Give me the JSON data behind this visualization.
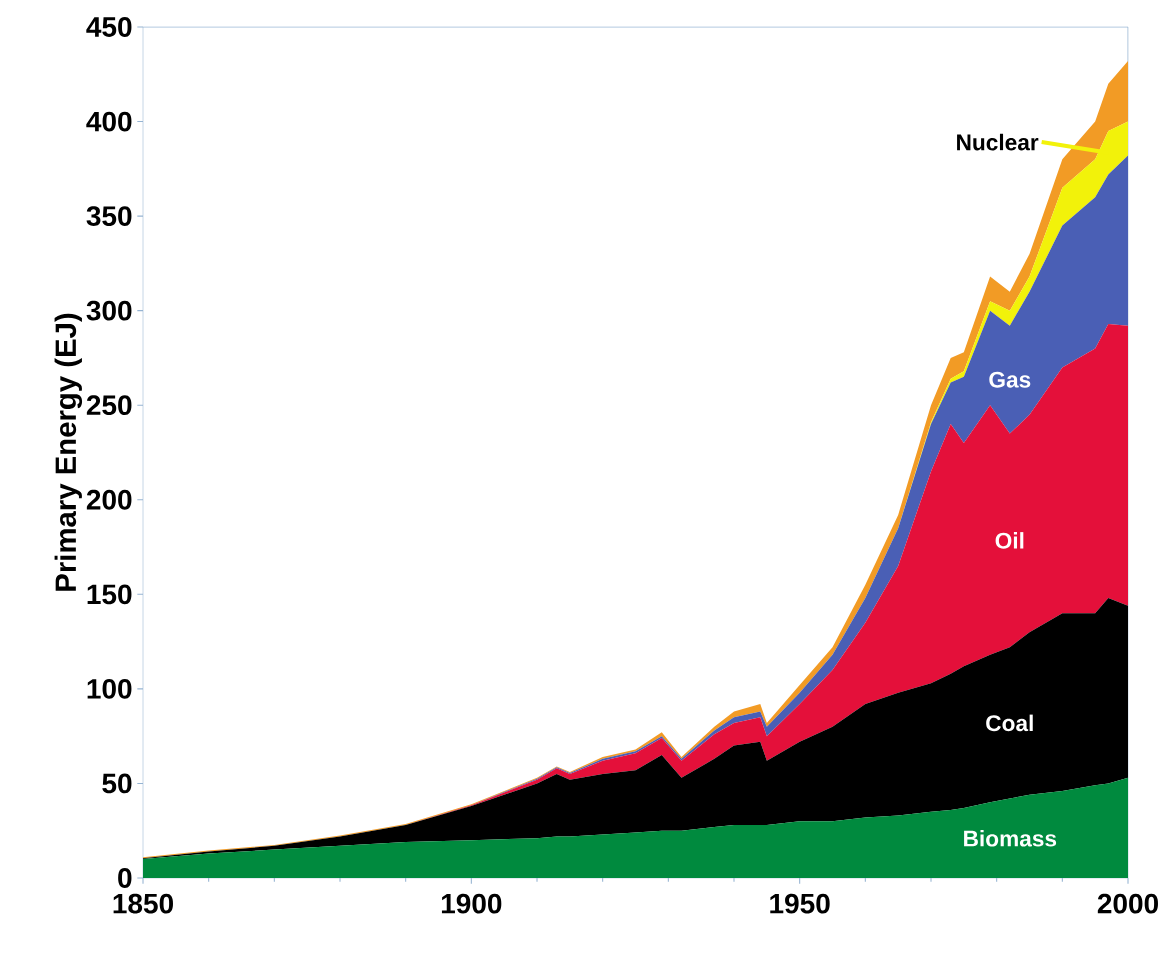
{
  "chart_data": {
    "type": "area",
    "stacked": true,
    "ylabel": "Primary Energy  (EJ)",
    "x": [
      1850,
      1860,
      1870,
      1880,
      1890,
      1900,
      1910,
      1913,
      1915,
      1920,
      1925,
      1929,
      1932,
      1937,
      1940,
      1944,
      1945,
      1950,
      1955,
      1960,
      1965,
      1970,
      1973,
      1975,
      1979,
      1982,
      1985,
      1990,
      1995,
      1997,
      2000
    ],
    "series": [
      {
        "name": "Biomass",
        "color": "#008a3e",
        "values": [
          10,
          13,
          15,
          17,
          19,
          20,
          21,
          22,
          22,
          23,
          24,
          25,
          25,
          27,
          28,
          28,
          28,
          30,
          30,
          32,
          33,
          35,
          36,
          37,
          40,
          42,
          44,
          46,
          49,
          50,
          53
        ]
      },
      {
        "name": "Coal",
        "color": "#000000",
        "values": [
          0.5,
          1,
          2,
          5,
          9,
          18,
          29,
          33,
          30,
          32,
          33,
          40,
          28,
          36,
          42,
          44,
          34,
          42,
          50,
          60,
          65,
          68,
          72,
          75,
          78,
          80,
          86,
          94,
          91,
          98,
          91
        ]
      },
      {
        "name": "Oil",
        "color": "#e4103a",
        "values": [
          0,
          0,
          0,
          0,
          0,
          0.5,
          2,
          3,
          3,
          7,
          9,
          9,
          9,
          13,
          12,
          13,
          13,
          20,
          30,
          43,
          67,
          112,
          132,
          118,
          132,
          113,
          115,
          130,
          140,
          145,
          148
        ]
      },
      {
        "name": "Gas",
        "color": "#4a5fb5",
        "values": [
          0,
          0,
          0,
          0,
          0,
          0,
          0.5,
          0.5,
          0.5,
          1,
          1,
          1,
          1,
          2,
          3,
          3,
          5,
          6,
          8,
          13,
          20,
          25,
          22,
          35,
          50,
          57,
          65,
          75,
          80,
          79,
          90
        ]
      },
      {
        "name": "Nuclear",
        "color": "#f2f20a",
        "values": [
          0,
          0,
          0,
          0,
          0,
          0,
          0,
          0,
          0,
          0,
          0,
          0,
          0,
          0,
          0,
          0,
          0,
          0,
          0,
          0,
          0,
          1,
          2,
          3,
          5,
          8,
          8,
          20,
          20,
          23,
          18
        ]
      },
      {
        "color": "#f29b25",
        "values": [
          0.5,
          0.5,
          0.5,
          0.5,
          0.5,
          0.5,
          0.5,
          0.5,
          0.5,
          1,
          1,
          2,
          1,
          2,
          3,
          4,
          2,
          4,
          4,
          7,
          7,
          9,
          11,
          10,
          13,
          10,
          12,
          15,
          20,
          25,
          32
        ]
      }
    ],
    "xlim": [
      1850,
      2000
    ],
    "ylim": [
      0,
      450
    ],
    "xticks": [
      1850,
      1900,
      1950,
      2000
    ],
    "yticks": [
      0,
      50,
      100,
      150,
      200,
      250,
      300,
      350,
      400,
      450
    ]
  }
}
